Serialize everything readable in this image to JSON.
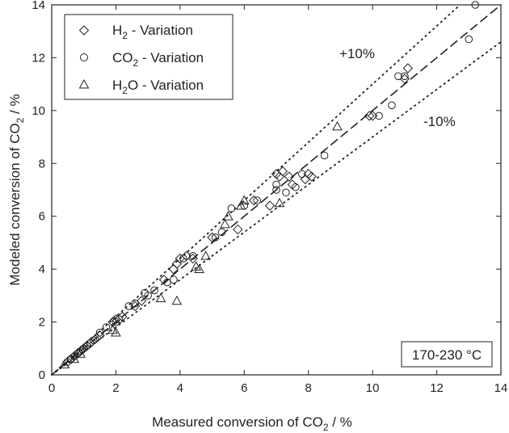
{
  "chart_data": {
    "type": "scatter",
    "title": "",
    "xlabel": {
      "main": "Measured conversion of CO",
      "sub": "2",
      "tail": " / %"
    },
    "ylabel": {
      "main": "Modeled conversion of CO",
      "sub": "2",
      "tail": " / %"
    },
    "xlim": [
      0,
      14
    ],
    "ylim": [
      0,
      14
    ],
    "xticks": [
      0,
      2,
      4,
      6,
      8,
      10,
      12,
      14
    ],
    "yticks": [
      0,
      2,
      4,
      6,
      8,
      10,
      12,
      14
    ],
    "grid": false,
    "legend_position": "top-left",
    "series": [
      {
        "name": {
          "pre": "H",
          "sub": "2",
          "post": " - Variation"
        },
        "marker": "diamond",
        "points": [
          [
            0.5,
            0.5
          ],
          [
            0.6,
            0.6
          ],
          [
            0.7,
            0.7
          ],
          [
            0.8,
            0.8
          ],
          [
            0.9,
            0.9
          ],
          [
            1.0,
            1.0
          ],
          [
            1.1,
            1.1
          ],
          [
            1.2,
            1.2
          ],
          [
            1.4,
            1.4
          ],
          [
            1.5,
            1.5
          ],
          [
            1.9,
            2.0
          ],
          [
            2.0,
            2.1
          ],
          [
            2.2,
            2.2
          ],
          [
            2.6,
            2.6
          ],
          [
            2.8,
            2.8
          ],
          [
            3.5,
            3.6
          ],
          [
            3.8,
            4.0
          ],
          [
            3.9,
            4.2
          ],
          [
            4.0,
            4.4
          ],
          [
            4.2,
            4.5
          ],
          [
            4.4,
            4.4
          ],
          [
            5.0,
            5.2
          ],
          [
            5.8,
            5.5
          ],
          [
            6.3,
            6.6
          ],
          [
            6.8,
            6.4
          ],
          [
            7.0,
            7.6
          ],
          [
            7.1,
            7.5
          ],
          [
            7.2,
            7.7
          ],
          [
            7.4,
            7.5
          ],
          [
            7.5,
            7.2
          ],
          [
            7.9,
            7.4
          ],
          [
            8.0,
            7.6
          ],
          [
            8.1,
            7.5
          ],
          [
            9.9,
            9.8
          ],
          [
            10.0,
            9.8
          ],
          [
            11.0,
            11.2
          ],
          [
            11.1,
            11.6
          ]
        ]
      },
      {
        "name": {
          "pre": "CO",
          "sub": "2",
          "post": " - Variation"
        },
        "marker": "circle",
        "points": [
          [
            0.6,
            0.6
          ],
          [
            0.8,
            0.8
          ],
          [
            0.9,
            0.9
          ],
          [
            1.0,
            1.0
          ],
          [
            1.1,
            1.1
          ],
          [
            1.2,
            1.2
          ],
          [
            1.3,
            1.3
          ],
          [
            1.5,
            1.6
          ],
          [
            1.7,
            1.8
          ],
          [
            2.0,
            2.0
          ],
          [
            2.1,
            2.1
          ],
          [
            2.4,
            2.6
          ],
          [
            2.6,
            2.7
          ],
          [
            2.9,
            3.1
          ],
          [
            3.0,
            3.0
          ],
          [
            3.2,
            3.2
          ],
          [
            3.6,
            3.5
          ],
          [
            3.8,
            3.6
          ],
          [
            4.1,
            4.4
          ],
          [
            4.4,
            4.5
          ],
          [
            5.1,
            5.2
          ],
          [
            5.3,
            5.4
          ],
          [
            5.6,
            6.3
          ],
          [
            6.0,
            6.4
          ],
          [
            6.4,
            6.6
          ],
          [
            7.0,
            7.0
          ],
          [
            7.0,
            7.2
          ],
          [
            7.3,
            6.9
          ],
          [
            7.6,
            7.1
          ],
          [
            7.8,
            7.6
          ],
          [
            8.5,
            8.3
          ],
          [
            10.2,
            9.8
          ],
          [
            10.6,
            10.2
          ],
          [
            10.8,
            11.3
          ],
          [
            11.0,
            11.3
          ],
          [
            13.0,
            12.7
          ],
          [
            13.2,
            14.0
          ]
        ]
      },
      {
        "name": {
          "pre": "H",
          "sub": "2",
          "post": "O - Variation"
        },
        "marker": "triangle",
        "points": [
          [
            0.4,
            0.4
          ],
          [
            0.7,
            0.6
          ],
          [
            0.9,
            0.8
          ],
          [
            1.9,
            1.7
          ],
          [
            2.0,
            1.6
          ],
          [
            3.4,
            2.9
          ],
          [
            3.9,
            2.8
          ],
          [
            4.5,
            4.1
          ],
          [
            4.6,
            4.0
          ],
          [
            4.8,
            4.5
          ],
          [
            5.4,
            5.7
          ],
          [
            5.5,
            6.0
          ],
          [
            5.9,
            6.4
          ],
          [
            6.0,
            6.6
          ],
          [
            7.1,
            6.5
          ],
          [
            8.9,
            9.4
          ]
        ]
      }
    ],
    "reference_lines": [
      {
        "label": "",
        "slope": 1.0,
        "style": "dashed"
      },
      {
        "label": "+10%",
        "slope": 1.1,
        "style": "dotted"
      },
      {
        "label": "-10%",
        "slope": 0.9,
        "style": "dotted"
      }
    ],
    "annotations": {
      "temperature_range": "170-230 °C"
    }
  }
}
